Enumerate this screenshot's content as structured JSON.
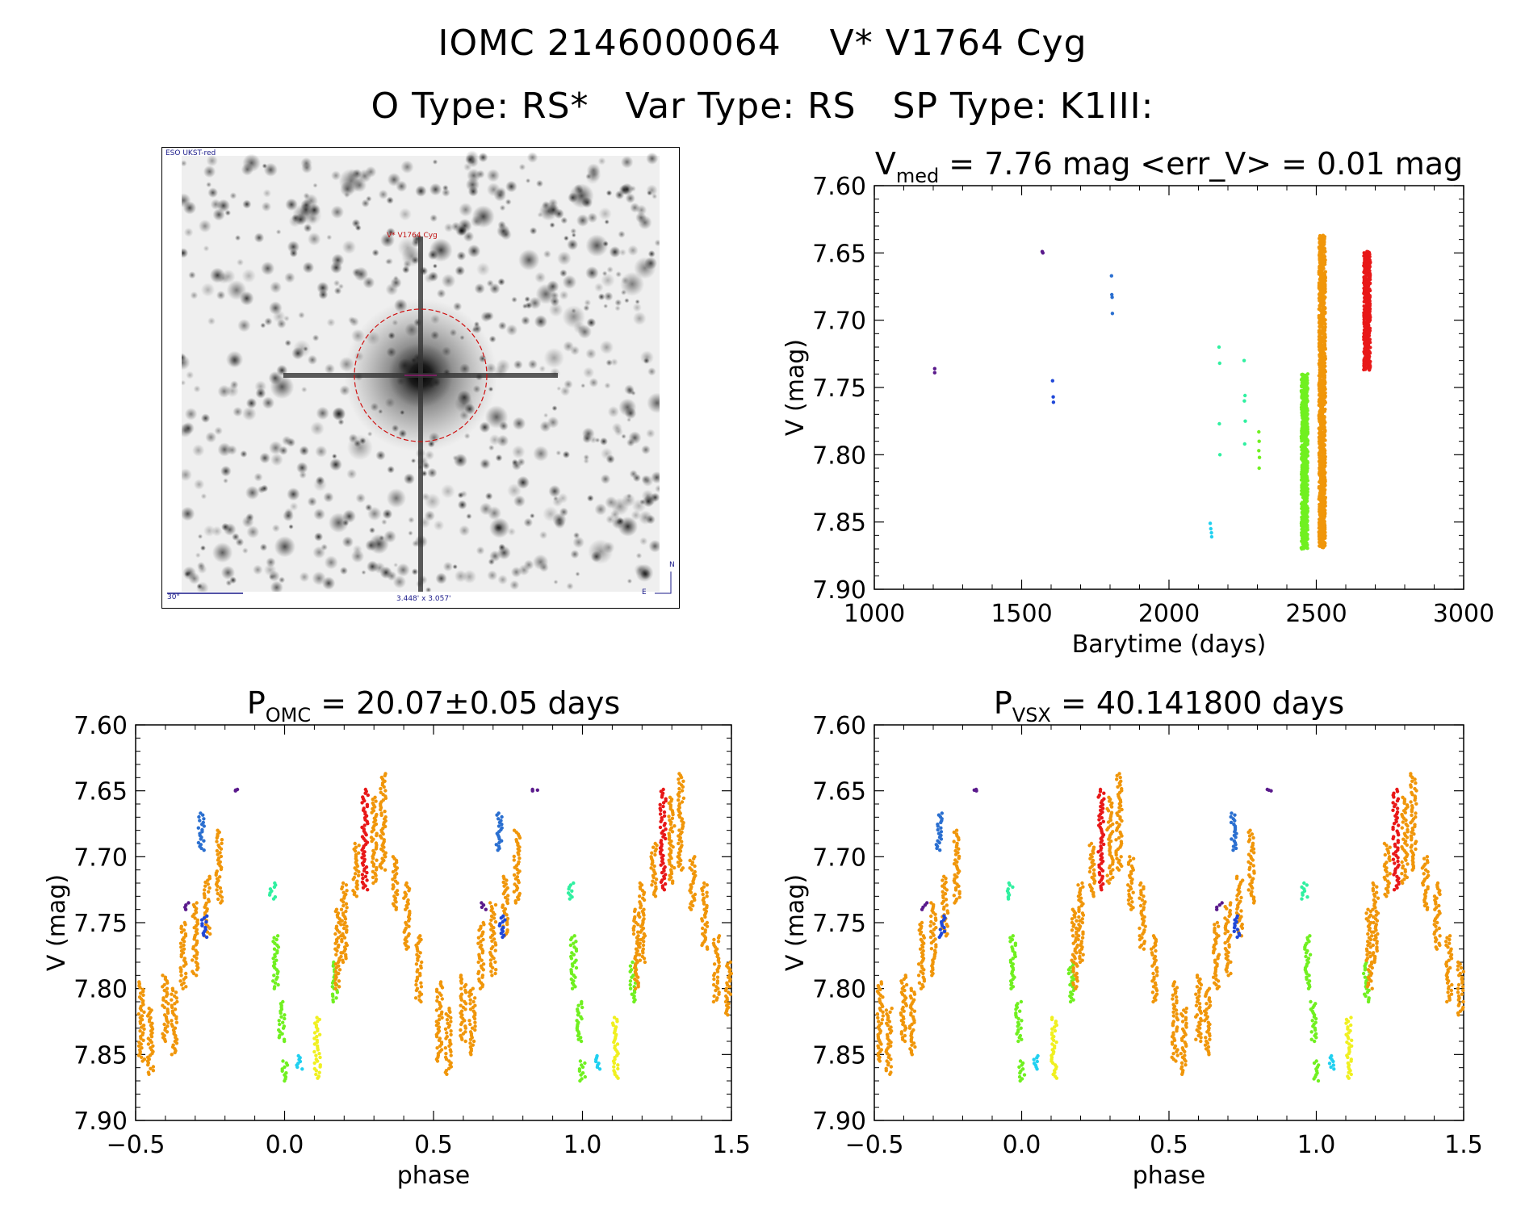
{
  "header": {
    "line1": "IOMC 2146000064    V* V1764 Cyg",
    "line2": "O Type: RS*   Var Type: RS   SP Type: K1III:"
  },
  "image_panel": {
    "survey": "ESO UKST-red",
    "target_label": "V* V1764 Cyg",
    "scale_label": "30\"",
    "field_label": "3.448' x 3.057'",
    "north_label": "N",
    "east_label": "E"
  },
  "colors": {
    "purple": "#5a1a8c",
    "blue": "#2048d8",
    "steelblue": "#2a6fd0",
    "cyan": "#20d0f0",
    "aqua": "#30f0a0",
    "green": "#70f020",
    "yellow": "#f0f020",
    "orange": "#f0960a",
    "red": "#e81818"
  },
  "chart_data": [
    {
      "type": "scatter",
      "id": "lightcurve",
      "title_main": "V",
      "title_sub": "med",
      "title_rest": " = 7.76 mag <err_V> = 0.01 mag",
      "xlabel": "Barytime (days)",
      "ylabel": "V (mag)",
      "xlim": [
        1000,
        3000
      ],
      "ylim": [
        7.9,
        7.6
      ],
      "y_inverted": true,
      "xticks": [
        "1000",
        "1500",
        "2000",
        "2500",
        "3000"
      ],
      "yticks": [
        "7.60",
        "7.65",
        "7.70",
        "7.75",
        "7.80",
        "7.85",
        "7.90"
      ],
      "groups": [
        {
          "color": "purple",
          "x": [
            1205,
            1205
          ],
          "y": [
            7.736,
            7.739
          ]
        },
        {
          "color": "purple",
          "x": [
            1570,
            1572
          ],
          "y": [
            7.649,
            7.65
          ]
        },
        {
          "color": "blue",
          "x": [
            1605,
            1607,
            1608
          ],
          "y": [
            7.745,
            7.757,
            7.761
          ]
        },
        {
          "color": "steelblue",
          "x": [
            1805,
            1806,
            1807,
            1808
          ],
          "y": [
            7.667,
            7.681,
            7.683,
            7.695
          ]
        },
        {
          "color": "cyan",
          "x": [
            2140,
            2142,
            2144,
            2145
          ],
          "y": [
            7.851,
            7.855,
            7.858,
            7.861
          ]
        },
        {
          "color": "aqua",
          "x": [
            2170,
            2172,
            2171,
            2173,
            2255,
            2258,
            2256,
            2259,
            2257
          ],
          "y": [
            7.72,
            7.732,
            7.777,
            7.8,
            7.73,
            7.756,
            7.76,
            7.775,
            7.792
          ]
        },
        {
          "color": "green",
          "x": [
            2305,
            2306,
            2305,
            2307,
            2306
          ],
          "y": [
            7.783,
            7.79,
            7.797,
            7.802,
            7.81
          ]
        }
      ],
      "bands": [
        {
          "color": "green",
          "x": 2460,
          "ymin": 7.74,
          "ymax": 7.87
        },
        {
          "color": "orange",
          "x": 2520,
          "ymin": 7.637,
          "ymax": 7.869
        },
        {
          "color": "red",
          "x": 2672,
          "ymin": 7.649,
          "ymax": 7.737
        }
      ]
    },
    {
      "type": "scatter",
      "id": "phase_omc",
      "title_main": "P",
      "title_sub": "OMC",
      "title_rest": " = 20.07±0.05 days",
      "xlabel": "phase",
      "ylabel": "V (mag)",
      "xlim": [
        -0.5,
        1.5
      ],
      "ylim": [
        7.9,
        7.6
      ],
      "y_inverted": true,
      "xticks": [
        "−0.5",
        "0.0",
        "0.5",
        "1.0",
        "1.5"
      ],
      "yticks": [
        "7.60",
        "7.65",
        "7.70",
        "7.75",
        "7.80",
        "7.85",
        "7.90"
      ],
      "phase_bands": [
        {
          "color": "orange",
          "x": -0.48,
          "ymin": 7.795,
          "ymax": 7.855
        },
        {
          "color": "orange",
          "x": -0.45,
          "ymin": 7.815,
          "ymax": 7.865
        },
        {
          "color": "orange",
          "x": -0.4,
          "ymin": 7.79,
          "ymax": 7.84
        },
        {
          "color": "orange",
          "x": -0.37,
          "ymin": 7.8,
          "ymax": 7.85
        },
        {
          "color": "orange",
          "x": -0.34,
          "ymin": 7.75,
          "ymax": 7.8
        },
        {
          "color": "orange",
          "x": -0.3,
          "ymin": 7.735,
          "ymax": 7.79
        },
        {
          "color": "orange",
          "x": -0.26,
          "ymin": 7.715,
          "ymax": 7.76
        },
        {
          "color": "orange",
          "x": -0.22,
          "ymin": 7.68,
          "ymax": 7.735
        },
        {
          "color": "purple",
          "x": -0.33,
          "ymin": 7.735,
          "ymax": 7.74
        },
        {
          "color": "blue",
          "x": -0.27,
          "ymin": 7.745,
          "ymax": 7.761
        },
        {
          "color": "steelblue",
          "x": -0.28,
          "ymin": 7.667,
          "ymax": 7.695
        },
        {
          "color": "purple",
          "x": -0.16,
          "ymin": 7.649,
          "ymax": 7.65
        },
        {
          "color": "aqua",
          "x": -0.04,
          "ymin": 7.72,
          "ymax": 7.732
        },
        {
          "color": "green",
          "x": -0.03,
          "ymin": 7.76,
          "ymax": 7.8
        },
        {
          "color": "green",
          "x": -0.01,
          "ymin": 7.81,
          "ymax": 7.84
        },
        {
          "color": "green",
          "x": 0.0,
          "ymin": 7.855,
          "ymax": 7.87
        },
        {
          "color": "cyan",
          "x": 0.05,
          "ymin": 7.851,
          "ymax": 7.861
        },
        {
          "color": "yellow",
          "x": 0.11,
          "ymin": 7.822,
          "ymax": 7.868
        },
        {
          "color": "green",
          "x": 0.17,
          "ymin": 7.78,
          "ymax": 7.81
        },
        {
          "color": "orange",
          "x": 0.18,
          "ymin": 7.74,
          "ymax": 7.8
        },
        {
          "color": "orange",
          "x": 0.2,
          "ymin": 7.72,
          "ymax": 7.78
        },
        {
          "color": "orange",
          "x": 0.24,
          "ymin": 7.69,
          "ymax": 7.73
        },
        {
          "color": "red",
          "x": 0.27,
          "ymin": 7.649,
          "ymax": 7.725
        },
        {
          "color": "orange",
          "x": 0.3,
          "ymin": 7.655,
          "ymax": 7.72
        },
        {
          "color": "orange",
          "x": 0.33,
          "ymin": 7.637,
          "ymax": 7.71
        },
        {
          "color": "orange",
          "x": 0.37,
          "ymin": 7.7,
          "ymax": 7.74
        },
        {
          "color": "orange",
          "x": 0.41,
          "ymin": 7.72,
          "ymax": 7.77
        },
        {
          "color": "orange",
          "x": 0.45,
          "ymin": 7.76,
          "ymax": 7.81
        },
        {
          "color": "orange",
          "x": 0.52,
          "ymin": 7.795,
          "ymax": 7.855
        },
        {
          "color": "orange",
          "x": 0.55,
          "ymin": 7.815,
          "ymax": 7.865
        },
        {
          "color": "orange",
          "x": 0.6,
          "ymin": 7.79,
          "ymax": 7.84
        },
        {
          "color": "orange",
          "x": 0.63,
          "ymin": 7.8,
          "ymax": 7.85
        },
        {
          "color": "orange",
          "x": 0.66,
          "ymin": 7.75,
          "ymax": 7.8
        },
        {
          "color": "orange",
          "x": 0.7,
          "ymin": 7.735,
          "ymax": 7.79
        },
        {
          "color": "orange",
          "x": 0.74,
          "ymin": 7.715,
          "ymax": 7.76
        },
        {
          "color": "orange",
          "x": 0.78,
          "ymin": 7.68,
          "ymax": 7.735
        },
        {
          "color": "purple",
          "x": 0.67,
          "ymin": 7.735,
          "ymax": 7.74
        },
        {
          "color": "blue",
          "x": 0.73,
          "ymin": 7.745,
          "ymax": 7.761
        },
        {
          "color": "steelblue",
          "x": 0.72,
          "ymin": 7.667,
          "ymax": 7.695
        },
        {
          "color": "purple",
          "x": 0.84,
          "ymin": 7.649,
          "ymax": 7.65
        },
        {
          "color": "aqua",
          "x": 0.96,
          "ymin": 7.72,
          "ymax": 7.732
        },
        {
          "color": "green",
          "x": 0.97,
          "ymin": 7.76,
          "ymax": 7.8
        },
        {
          "color": "green",
          "x": 0.99,
          "ymin": 7.81,
          "ymax": 7.84
        },
        {
          "color": "green",
          "x": 1.0,
          "ymin": 7.855,
          "ymax": 7.87
        },
        {
          "color": "cyan",
          "x": 1.05,
          "ymin": 7.851,
          "ymax": 7.861
        },
        {
          "color": "yellow",
          "x": 1.11,
          "ymin": 7.822,
          "ymax": 7.868
        },
        {
          "color": "green",
          "x": 1.17,
          "ymin": 7.78,
          "ymax": 7.81
        },
        {
          "color": "orange",
          "x": 1.18,
          "ymin": 7.74,
          "ymax": 7.8
        },
        {
          "color": "orange",
          "x": 1.2,
          "ymin": 7.72,
          "ymax": 7.78
        },
        {
          "color": "orange",
          "x": 1.24,
          "ymin": 7.69,
          "ymax": 7.73
        },
        {
          "color": "red",
          "x": 1.27,
          "ymin": 7.649,
          "ymax": 7.725
        },
        {
          "color": "orange",
          "x": 1.3,
          "ymin": 7.655,
          "ymax": 7.72
        },
        {
          "color": "orange",
          "x": 1.33,
          "ymin": 7.637,
          "ymax": 7.71
        },
        {
          "color": "orange",
          "x": 1.37,
          "ymin": 7.7,
          "ymax": 7.74
        },
        {
          "color": "orange",
          "x": 1.41,
          "ymin": 7.72,
          "ymax": 7.77
        },
        {
          "color": "orange",
          "x": 1.45,
          "ymin": 7.76,
          "ymax": 7.81
        },
        {
          "color": "orange",
          "x": 1.49,
          "ymin": 7.78,
          "ymax": 7.82
        }
      ]
    },
    {
      "type": "scatter",
      "id": "phase_vsx",
      "title_main": "P",
      "title_sub": "VSX",
      "title_rest": " = 40.141800 days",
      "xlabel": "phase",
      "ylabel": "V (mag)",
      "xlim": [
        -0.5,
        1.5
      ],
      "ylim": [
        7.9,
        7.6
      ],
      "y_inverted": true,
      "xticks": [
        "−0.5",
        "0.0",
        "0.5",
        "1.0",
        "1.5"
      ],
      "yticks": [
        "7.60",
        "7.65",
        "7.70",
        "7.75",
        "7.80",
        "7.85",
        "7.90"
      ],
      "same_as": "phase_omc"
    }
  ]
}
